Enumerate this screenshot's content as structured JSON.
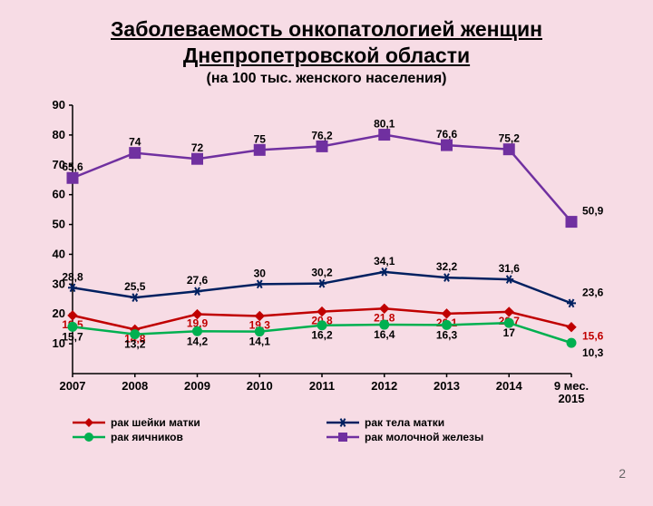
{
  "header": {
    "title_line1": "Заболеваемость онкопатологией женщин",
    "title_line2": "Днепропетровской области",
    "subtitle": "(на 100 тыс. женского  населения)"
  },
  "slide_number": "2",
  "chart": {
    "type": "line",
    "background_color": "#f7dce5",
    "plot_bg": "#f7dce5",
    "axis_color": "#000000",
    "tick_font_size": 13,
    "tick_font_weight": "bold",
    "x_categories": [
      "2007",
      "2008",
      "2009",
      "2010",
      "2011",
      "2012",
      "2013",
      "2014",
      "9 мес.\n2015"
    ],
    "ylim": [
      0,
      90
    ],
    "ytick_step": 10,
    "data_label_font_size": 12,
    "data_label_font_weight": "bold",
    "series": [
      {
        "id": "cervix",
        "label": "рак шейки матки",
        "color": "#c00000",
        "marker": "diamond",
        "marker_size": 10,
        "line_width": 2.5,
        "label_color": "#c00000",
        "data_label_dy": 14,
        "values": [
          19.5,
          14.8,
          19.9,
          19.3,
          20.8,
          21.8,
          20.1,
          20.7,
          15.6
        ],
        "value_labels": [
          "19,5",
          "14,8",
          "19,9",
          "19,3",
          "20,8",
          "21,8",
          "20,1",
          "20,7",
          "15,6"
        ]
      },
      {
        "id": "ovary",
        "label": "рак яичников",
        "color": "#00b050",
        "marker": "circle",
        "marker_size": 10,
        "line_width": 2.5,
        "label_color": "#000000",
        "data_label_dy": 15,
        "values": [
          15.7,
          13.2,
          14.2,
          14.1,
          16.2,
          16.4,
          16.3,
          17,
          10.3
        ],
        "value_labels": [
          "15,7",
          "13,2",
          "14,2",
          "14,1",
          "16,2",
          "16,4",
          "16,3",
          "17",
          "10,3"
        ]
      },
      {
        "id": "corpus",
        "label": "рак тела матки",
        "color": "#002060",
        "marker": "asterisk",
        "marker_size": 10,
        "line_width": 2.5,
        "label_color": "#000000",
        "data_label_dy": -8,
        "values": [
          28.8,
          25.5,
          27.6,
          30,
          30.2,
          34.1,
          32.2,
          31.6,
          23.6
        ],
        "value_labels": [
          "28,8",
          "25,5",
          "27,6",
          "30",
          "30,2",
          "34,1",
          "32,2",
          "31,6",
          "23,6"
        ]
      },
      {
        "id": "breast",
        "label": "рак молочной железы",
        "color": "#7030a0",
        "marker": "square",
        "marker_size": 12,
        "line_width": 2.5,
        "label_color": "#000000",
        "data_label_dy": -8,
        "values": [
          65.6,
          74,
          72,
          75,
          76.2,
          80.1,
          76.6,
          75.2,
          50.9
        ],
        "value_labels": [
          "65,6",
          "74",
          "72",
          "75",
          "76,2",
          "80,1",
          "76,6",
          "75,2",
          "50,9"
        ]
      }
    ]
  }
}
